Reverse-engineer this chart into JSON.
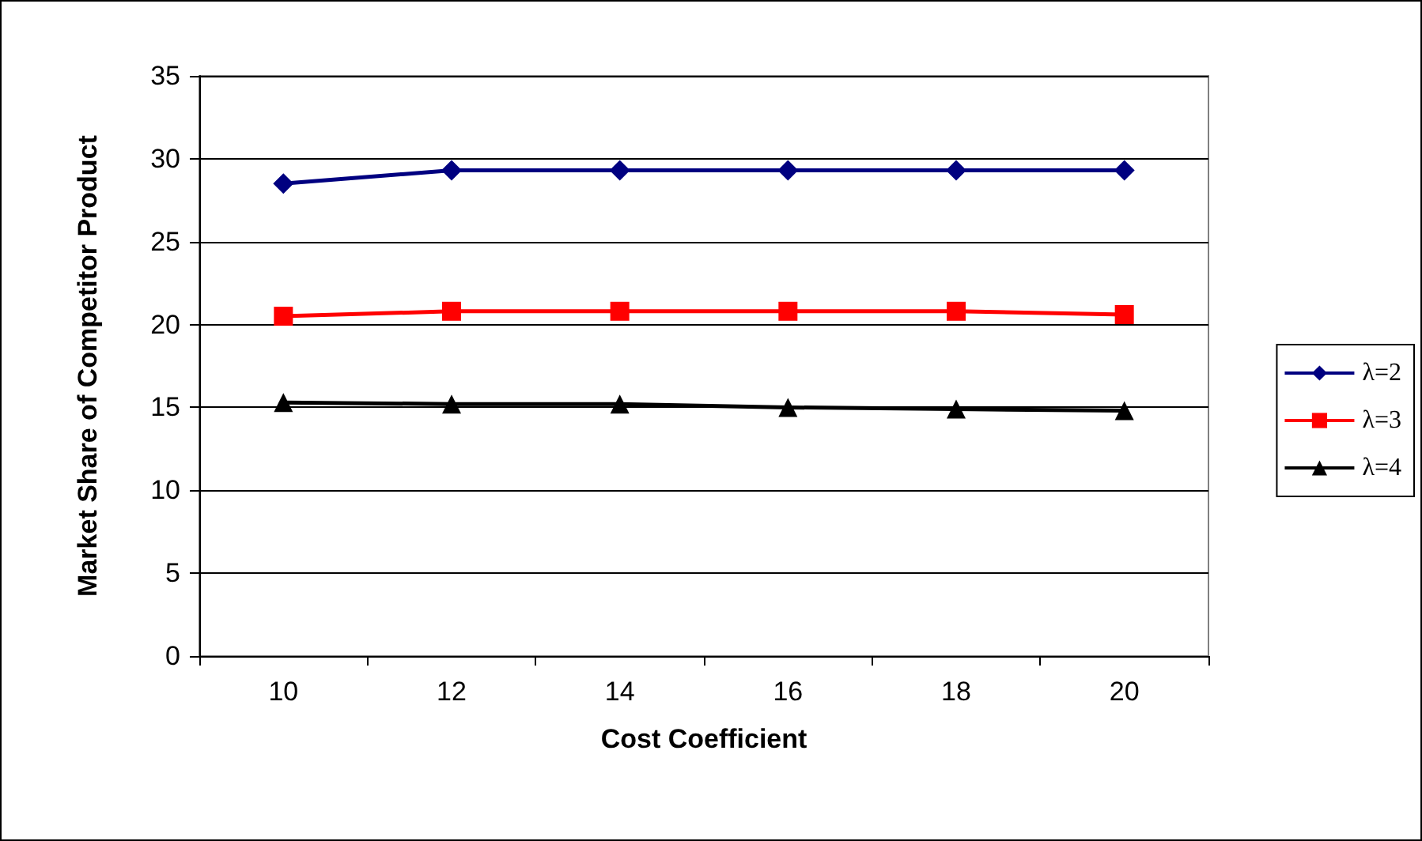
{
  "chart_data": {
    "type": "line",
    "xlabel": "Cost Coefficient",
    "ylabel": "Market Share of Competitor Product",
    "categories": [
      "10",
      "12",
      "14",
      "16",
      "18",
      "20"
    ],
    "series": [
      {
        "name": "λ=2",
        "color": "#000080",
        "marker": "diamond",
        "values": [
          28.5,
          29.3,
          29.3,
          29.3,
          29.3,
          29.3
        ]
      },
      {
        "name": "λ=3",
        "color": "#ff0000",
        "marker": "square",
        "values": [
          20.5,
          20.8,
          20.8,
          20.8,
          20.8,
          20.6
        ]
      },
      {
        "name": "λ=4",
        "color": "#000000",
        "marker": "triangle",
        "values": [
          15.3,
          15.2,
          15.2,
          15.0,
          14.9,
          14.8
        ]
      }
    ],
    "ylim": [
      0,
      35
    ],
    "yticks": [
      0,
      5,
      10,
      15,
      20,
      25,
      30,
      35
    ],
    "grid": "y",
    "legend": "right",
    "line_style": "solid"
  }
}
